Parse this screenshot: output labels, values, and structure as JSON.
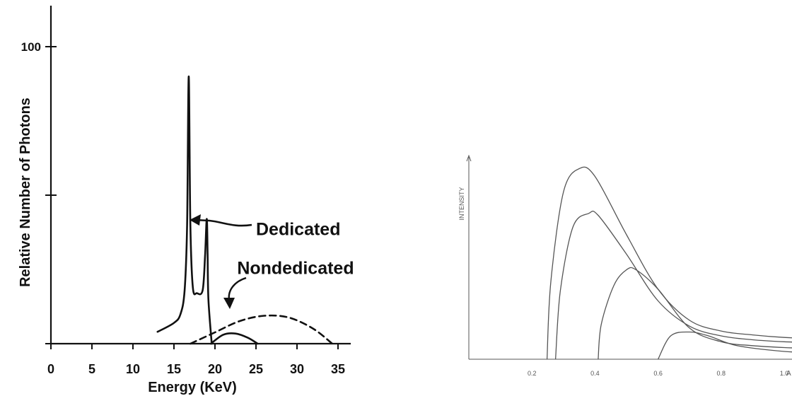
{
  "chart_data": [
    {
      "type": "line",
      "title": "",
      "xlabel": "Energy (KeV)",
      "ylabel": "Relative Number of Photons",
      "xlim": [
        0,
        39
      ],
      "ylim": [
        0,
        100
      ],
      "x_ticks": [
        0,
        5,
        10,
        15,
        20,
        25,
        30,
        35
      ],
      "x_tick_labels": [
        "0",
        "5",
        "10",
        "15",
        "20",
        "25",
        "30",
        "35"
      ],
      "y_ticks": [
        0,
        50,
        100
      ],
      "y_tick_labels": [
        "",
        "",
        "100"
      ],
      "grid": false,
      "legend": "none",
      "series": [
        {
          "name": "Dedicated",
          "style": "solid",
          "x": [
            13.0,
            15.0,
            15.8,
            16.3,
            16.6,
            16.8,
            17.0,
            17.3,
            17.8,
            18.5,
            18.8,
            19.0,
            19.1,
            19.2,
            19.6
          ],
          "y": [
            4.0,
            7.0,
            10.0,
            18.0,
            40.0,
            90.0,
            40.0,
            19.0,
            17.0,
            18.0,
            30.0,
            42.0,
            30.0,
            15.0,
            0.0
          ]
        },
        {
          "name": "Nondedicated",
          "style": "dashed",
          "x": [
            17.0,
            20.0,
            23.0,
            26.0,
            29.0,
            32.0,
            34.3
          ],
          "y": [
            0.0,
            3.8,
            7.6,
            9.4,
            8.8,
            5.0,
            0.0
          ]
        },
        {
          "name": "",
          "style": "solid",
          "x": [
            19.5,
            21.0,
            22.5,
            24.0,
            25.2
          ],
          "y": [
            0.0,
            3.0,
            3.4,
            2.0,
            0.0
          ]
        }
      ],
      "annotations": [
        {
          "text": "Dedicated",
          "x": 25.0,
          "y": 36.5
        },
        {
          "text": "Nondedicated",
          "x": 22.7,
          "y": 23.5
        }
      ]
    },
    {
      "type": "line",
      "title": "",
      "xlabel": "A",
      "ylabel": "INTENSITY",
      "xlim": [
        0.0,
        1.1
      ],
      "ylim": [
        0,
        10
      ],
      "x_ticks": [
        0.2,
        0.4,
        0.6,
        0.8,
        1.0
      ],
      "x_tick_labels": [
        "0.2",
        "0.4",
        "0.6",
        "0.8",
        "1.0"
      ],
      "y_ticks": [],
      "grid": false,
      "legend": "none",
      "series": [
        {
          "name": "",
          "x": [
            0.248,
            0.26,
            0.3,
            0.35,
            0.4,
            0.5,
            0.6,
            0.7,
            0.8,
            0.9,
            1.0,
            1.1
          ],
          "y": [
            0.0,
            4.0,
            8.6,
            9.8,
            9.4,
            6.4,
            3.6,
            2.0,
            1.45,
            1.25,
            1.12,
            1.05
          ]
        },
        {
          "name": "",
          "x": [
            0.275,
            0.29,
            0.33,
            0.38,
            0.41,
            0.5,
            0.6,
            0.7,
            0.8,
            0.9,
            1.0,
            1.1
          ],
          "y": [
            0.0,
            3.5,
            6.8,
            7.5,
            7.4,
            5.4,
            3.0,
            1.7,
            1.2,
            1.0,
            0.9,
            0.85
          ]
        },
        {
          "name": "",
          "x": [
            0.41,
            0.42,
            0.46,
            0.5,
            0.53,
            0.6,
            0.7,
            0.8,
            0.9,
            1.0,
            1.1
          ],
          "y": [
            0.0,
            1.8,
            3.8,
            4.6,
            4.6,
            3.6,
            1.6,
            0.9,
            0.7,
            0.6,
            0.55
          ]
        },
        {
          "name": "",
          "x": [
            0.6,
            0.64,
            0.7,
            0.76,
            0.85,
            1.0,
            1.1
          ],
          "y": [
            0.0,
            1.2,
            1.4,
            1.2,
            0.7,
            0.4,
            0.35
          ]
        }
      ]
    }
  ]
}
